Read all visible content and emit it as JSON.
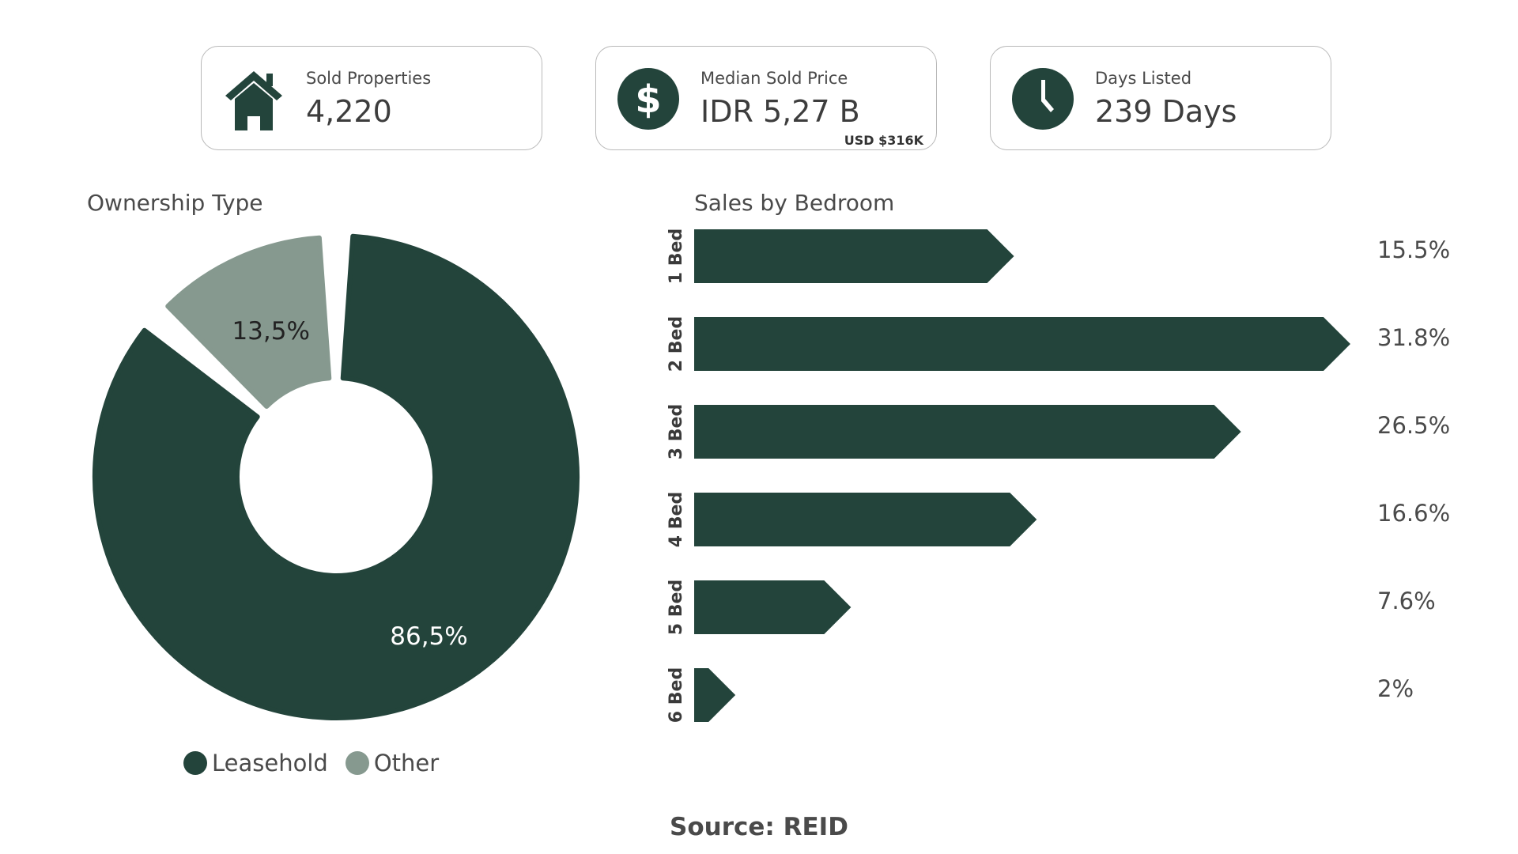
{
  "colors": {
    "primary": "#23443b",
    "secondary": "#86998f"
  },
  "kpis": {
    "sold": {
      "label": "Sold Properties",
      "value": "4,220",
      "icon": "house-icon"
    },
    "price": {
      "label": "Median Sold Price",
      "value": "IDR 5,27 B",
      "sub": "USD $316K",
      "icon": "dollar-icon"
    },
    "days": {
      "label": "Days Listed",
      "value": "239 Days",
      "icon": "clock-icon"
    }
  },
  "source": "Source: REID",
  "chart_data": [
    {
      "type": "pie",
      "title": "Ownership Type",
      "categories": [
        "Leasehold",
        "Other"
      ],
      "values": [
        86.5,
        13.5
      ],
      "data_labels": [
        "86,5%",
        "13,5%"
      ],
      "colors": [
        "#23443b",
        "#86998f"
      ],
      "legend": "bottom"
    },
    {
      "type": "bar",
      "orientation": "horizontal",
      "title": "Sales by Bedroom",
      "categories": [
        "1 Bed",
        "2 Bed",
        "3 Bed",
        "4 Bed",
        "5 Bed",
        "6 Bed"
      ],
      "values": [
        15.5,
        31.8,
        26.5,
        16.6,
        7.6,
        2
      ],
      "data_labels": [
        "15.5%",
        "31.8%",
        "26.5%",
        "16.6%",
        "7.6%",
        "2%"
      ],
      "color": "#23443b",
      "grid": false
    }
  ]
}
